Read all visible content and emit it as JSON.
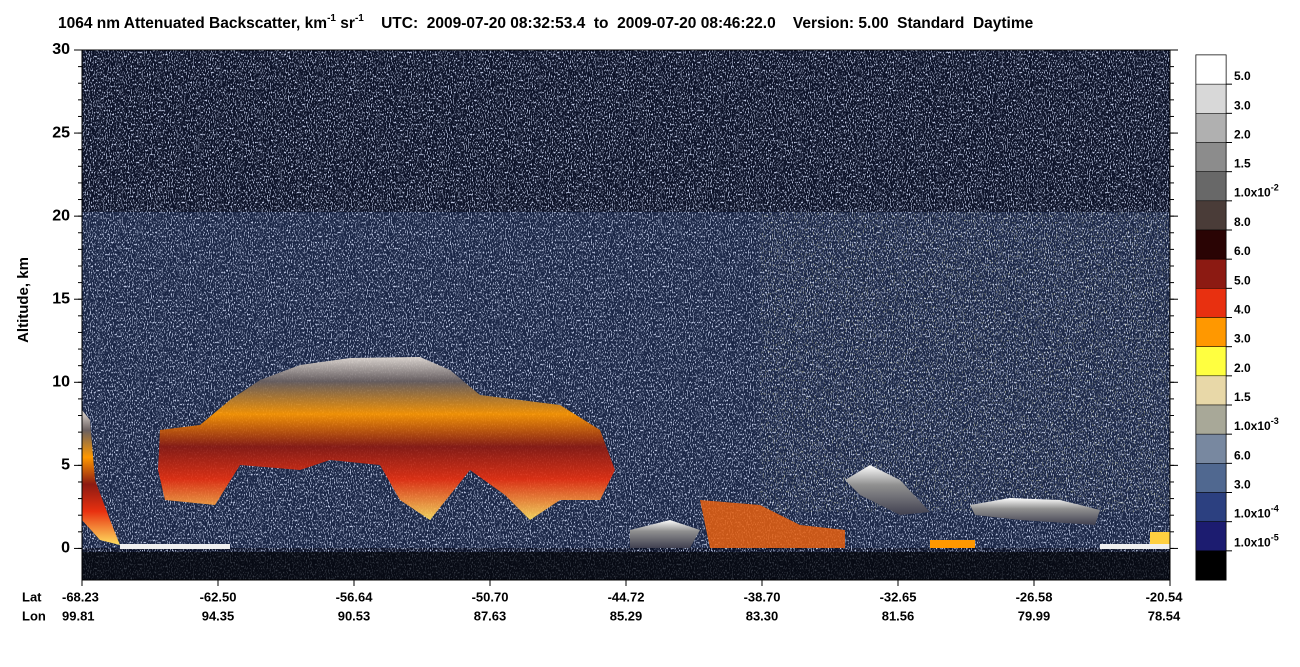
{
  "chart_data": {
    "type": "curtain",
    "title_parts": [
      {
        "text": "1064 nm Attenuated Backscatter, km",
        "sup": "-1"
      },
      {
        "text": " sr",
        "sup": "-1"
      },
      {
        "text": "    UTC:  2009-07-20 08:32:53.4  to  2009-07-20 08:46:22.0    Version: 5.00  Standard  Daytime"
      }
    ],
    "ylabel": "Altitude, km",
    "ylim": [
      -1.9,
      30
    ],
    "yticks": [
      0,
      5,
      10,
      15,
      20,
      25,
      30
    ],
    "x_row_labels": [
      "Lat",
      "Lon"
    ],
    "lat": [
      "-68.23",
      "-62.50",
      "-56.64",
      "-50.70",
      "-44.72",
      "-38.70",
      "-32.65",
      "-26.58",
      "-20.54"
    ],
    "lon": [
      "99.81",
      "94.35",
      "90.53",
      "87.63",
      "85.29",
      "83.30",
      "81.56",
      "79.99",
      "78.54"
    ],
    "colorbar": {
      "colors": [
        "#ffffff",
        "#d8d8d8",
        "#b0b0b0",
        "#8c8c8c",
        "#686868",
        "#4a3c38",
        "#2a0404",
        "#8c1a12",
        "#e83010",
        "#ff9800",
        "#ffff40",
        "#e8d8a8",
        "#a8a898",
        "#7888a0",
        "#506890",
        "#2c4080",
        "#1c1c70",
        "#000000"
      ],
      "labels": [
        "5.0",
        "3.0",
        "2.0",
        "1.5",
        {
          "text": "1.0x10",
          "sup": "-2"
        },
        "8.0",
        "6.0",
        "5.0",
        "4.0",
        "3.0",
        "2.0",
        "1.5",
        {
          "text": "1.0x10",
          "sup": "-3"
        },
        "6.0",
        "3.0",
        {
          "text": "1.0x10",
          "sup": "-4"
        },
        {
          "text": "1.0x10",
          "sup": "-5"
        }
      ]
    }
  }
}
